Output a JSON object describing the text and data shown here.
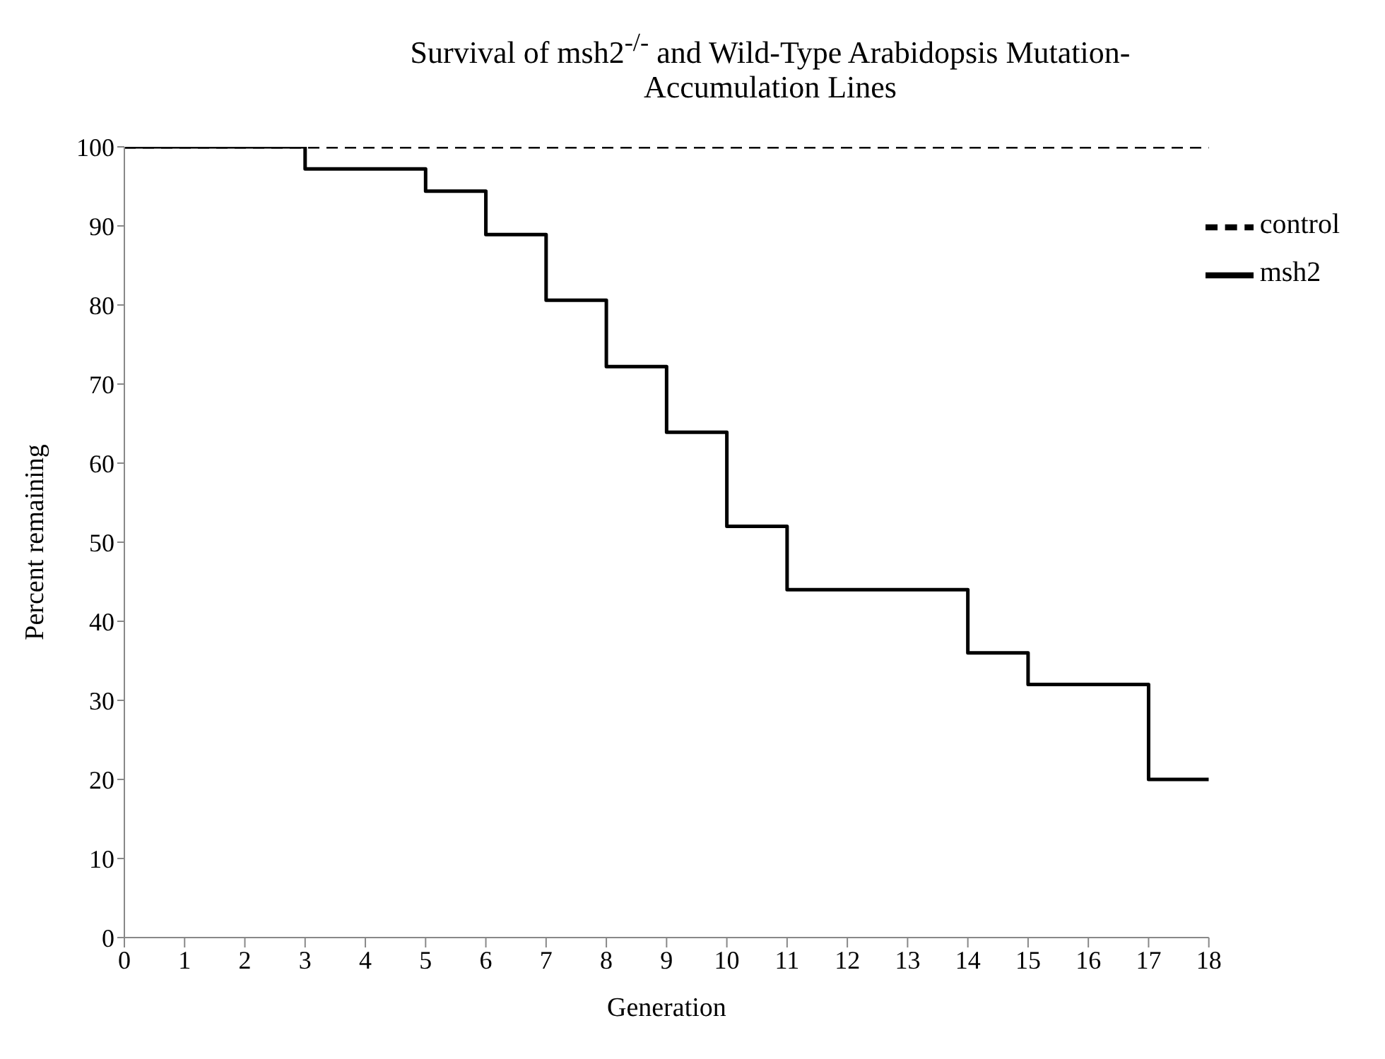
{
  "chart_data": {
    "type": "step",
    "title": "Survival of msh2$^{-/-}$ and Wild-Type Arabidopsis Mutation-Accumulation Lines",
    "xlabel": "Generation",
    "ylabel": "Percent remaining",
    "series": [
      {
        "name": "control",
        "color": "#000000",
        "line_style": "dashed",
        "x": [
          0,
          18
        ],
        "values": [
          100,
          100
        ]
      },
      {
        "name": "msh2",
        "color": "#000000",
        "line_style": "solid",
        "x": [
          0,
          3,
          5,
          6,
          7,
          8,
          9,
          10,
          11,
          14,
          15,
          17,
          18
        ],
        "values": [
          100,
          97.2,
          94.4,
          88.9,
          80.6,
          72.2,
          63.9,
          52,
          44,
          36,
          32,
          20,
          20
        ]
      }
    ],
    "xlim": [
      0,
      18
    ],
    "xticks": [
      0,
      1,
      2,
      3,
      4,
      5,
      6,
      7,
      8,
      9,
      10,
      11,
      12,
      13,
      14,
      15,
      16,
      17,
      18
    ],
    "ylim": [
      0,
      100
    ],
    "yticks": [
      0,
      10,
      20,
      30,
      40,
      50,
      60,
      70,
      80,
      90,
      100
    ],
    "grid": false,
    "legend": "top right",
    "marker": "none"
  }
}
